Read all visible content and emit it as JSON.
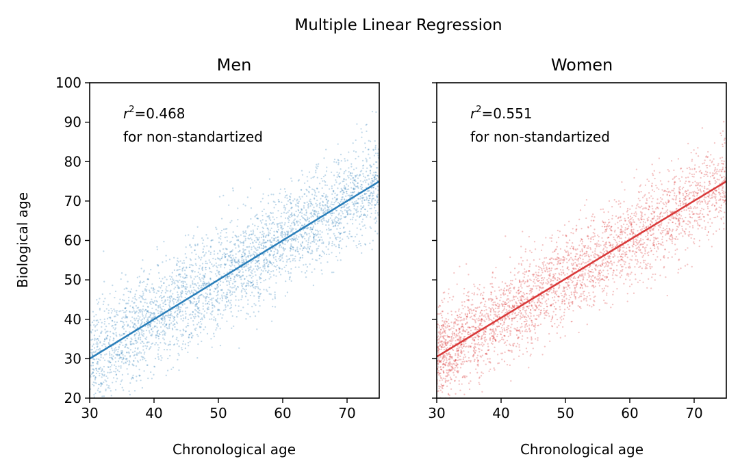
{
  "figure": {
    "title": "Multiple Linear Regression"
  },
  "chart_data": [
    {
      "type": "scatter",
      "title": "Men",
      "xlabel": "Chronological age",
      "ylabel": "Biological age",
      "xlim": [
        30,
        75
      ],
      "ylim": [
        20,
        100
      ],
      "xticks": [
        30,
        40,
        50,
        60,
        70
      ],
      "yticks": [
        20,
        30,
        40,
        50,
        60,
        70,
        80,
        90,
        100
      ],
      "annotation": {
        "r2_symbol": "r",
        "r2_exponent": "2",
        "r2_text": "=0.468",
        "note": "for non-standartized"
      },
      "fit_line": {
        "x": [
          30,
          75
        ],
        "y": [
          30,
          75
        ]
      },
      "color": "#1f77b4",
      "line_color": "#2a7fba",
      "series": [
        {
          "distribution": "x uniform over [30, 75], y scattered around the fit line",
          "x_range": [
            30,
            75
          ],
          "residual_std": 6.5
        }
      ]
    },
    {
      "type": "scatter",
      "title": "Women",
      "xlabel": "Chronological age",
      "ylabel": "",
      "xlim": [
        30,
        75
      ],
      "ylim": [
        20,
        100
      ],
      "xticks": [
        30,
        40,
        50,
        60,
        70
      ],
      "yticks": [
        20,
        30,
        40,
        50,
        60,
        70,
        80,
        90,
        100
      ],
      "annotation": {
        "r2_symbol": "r",
        "r2_exponent": "2",
        "r2_text": "=0.551",
        "note": "for non-standartized"
      },
      "fit_line": {
        "x": [
          30,
          75
        ],
        "y": [
          30.5,
          75
        ]
      },
      "color": "#d62728",
      "line_color": "#d93a3a",
      "series": [
        {
          "distribution": "x denser at low ages over [30, 75], y scattered around the fit line",
          "x_range": [
            30,
            75
          ],
          "residual_std": 5.8
        }
      ]
    }
  ]
}
